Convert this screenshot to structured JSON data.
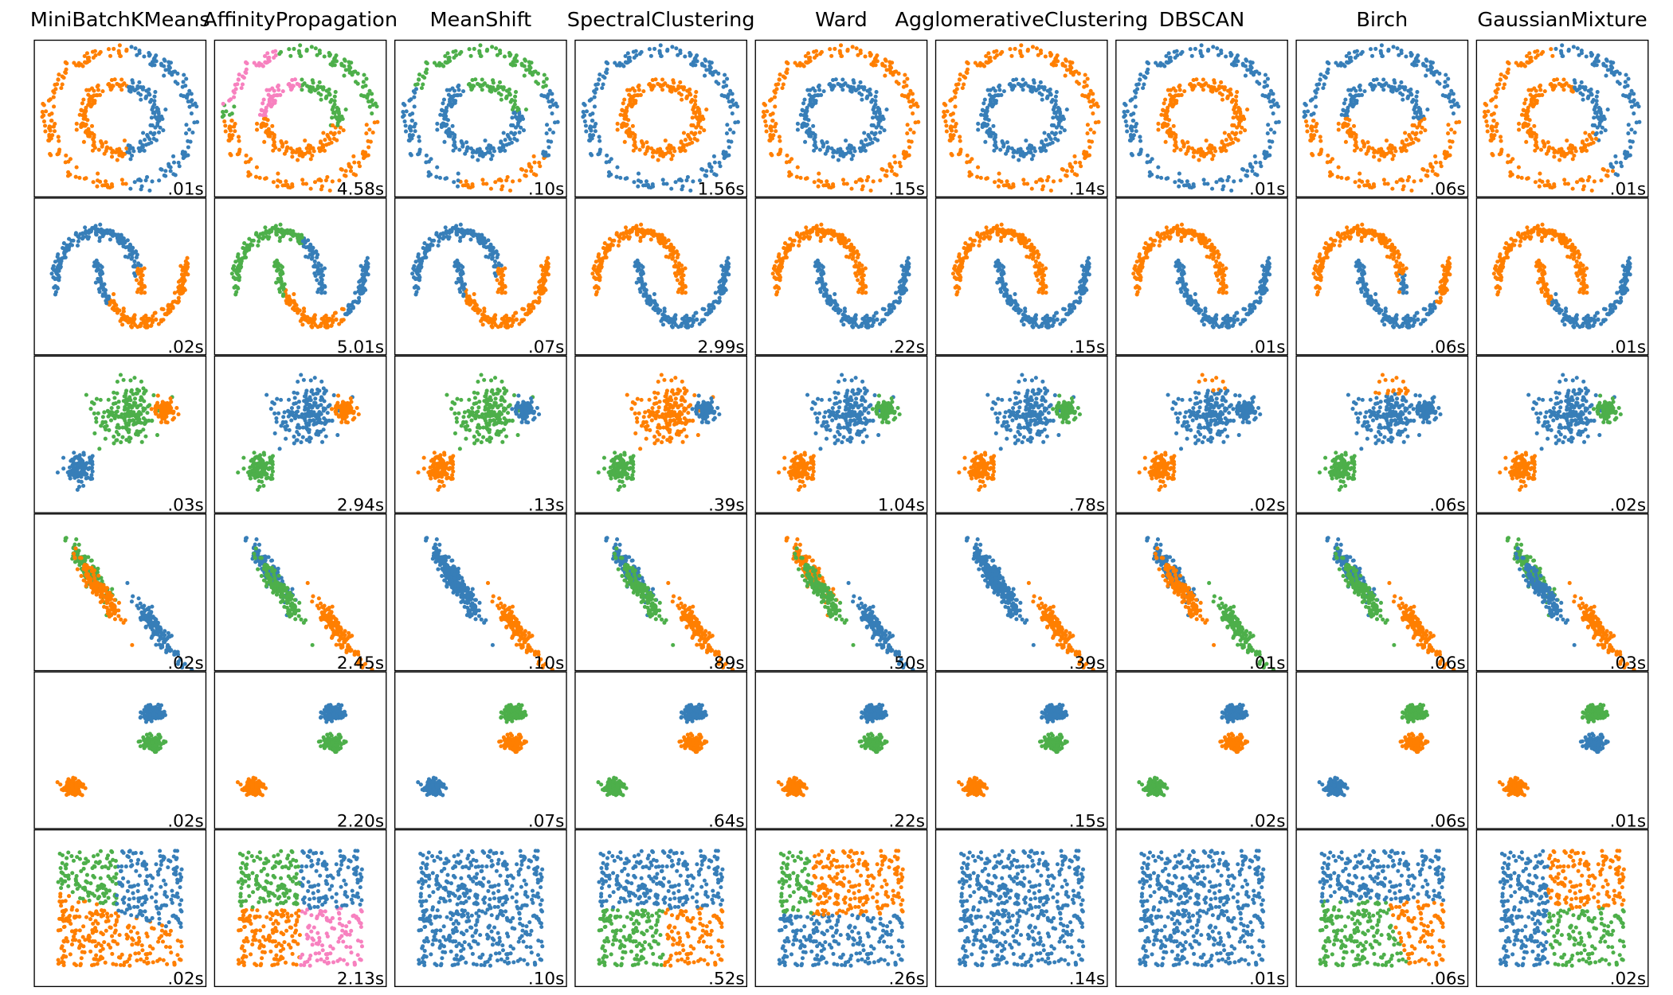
{
  "columns": [
    "MiniBatchKMeans",
    "AffinityPropagation",
    "MeanShift",
    "SpectralClustering",
    "Ward",
    "AgglomerativeClustering",
    "DBSCAN",
    "Birch",
    "GaussianMixture"
  ],
  "rows": [
    {
      "times": [
        ".01s",
        "4.58s",
        ".10s",
        "1.56s",
        ".15s",
        ".14s",
        ".01s",
        ".06s",
        ".01s"
      ]
    },
    {
      "times": [
        ".02s",
        "5.01s",
        ".07s",
        "2.99s",
        ".22s",
        ".15s",
        ".01s",
        ".06s",
        ".01s"
      ]
    },
    {
      "times": [
        ".03s",
        "2.94s",
        ".13s",
        ".39s",
        "1.04s",
        ".78s",
        ".02s",
        ".06s",
        ".02s"
      ]
    },
    {
      "times": [
        ".02s",
        "2.45s",
        ".10s",
        ".89s",
        ".50s",
        ".39s",
        ".01s",
        ".06s",
        ".03s"
      ]
    },
    {
      "times": [
        ".02s",
        "2.20s",
        ".07s",
        ".64s",
        ".22s",
        ".15s",
        ".02s",
        ".06s",
        ".01s"
      ]
    },
    {
      "times": [
        ".02s",
        "2.13s",
        ".10s",
        ".52s",
        ".26s",
        ".14s",
        ".01s",
        ".06s",
        ".02s"
      ]
    }
  ],
  "colors": [
    "#377eb8",
    "#ff7f00",
    "#4daf4a",
    "#f781bf"
  ]
}
